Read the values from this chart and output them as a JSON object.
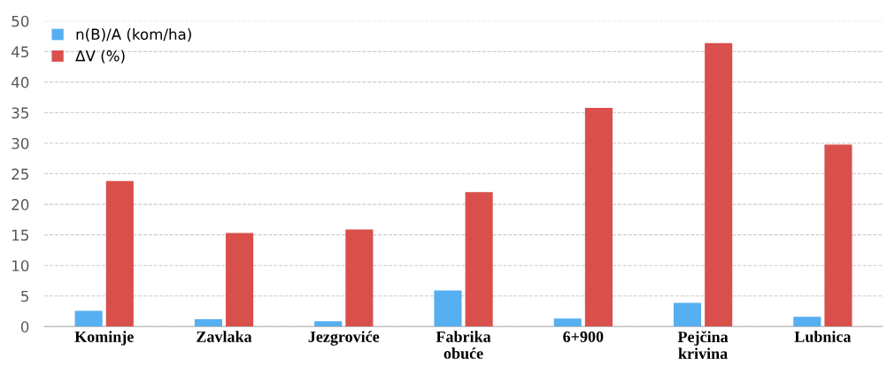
{
  "chart_data": {
    "type": "bar",
    "categories": [
      "Kominje",
      "Zavlaka",
      "Jezgroviće",
      "Fabrika\nobuće",
      "6+900",
      "Pejčina\nkrivina",
      "Lubnica"
    ],
    "series": [
      {
        "name": "n(B)/A (kom/ha)",
        "color": "#55aff0",
        "values": [
          2.6,
          1.2,
          0.9,
          5.9,
          1.3,
          3.9,
          1.6
        ]
      },
      {
        "name": "ΔV (%)",
        "color": "#d94f4c",
        "values": [
          23.8,
          15.3,
          15.9,
          22.0,
          35.8,
          46.4,
          29.8
        ]
      }
    ],
    "ylim": [
      0,
      50
    ],
    "yticks": [
      0,
      5,
      10,
      15,
      20,
      25,
      30,
      35,
      40,
      45,
      50
    ],
    "grid": "y",
    "legend": "top left"
  }
}
